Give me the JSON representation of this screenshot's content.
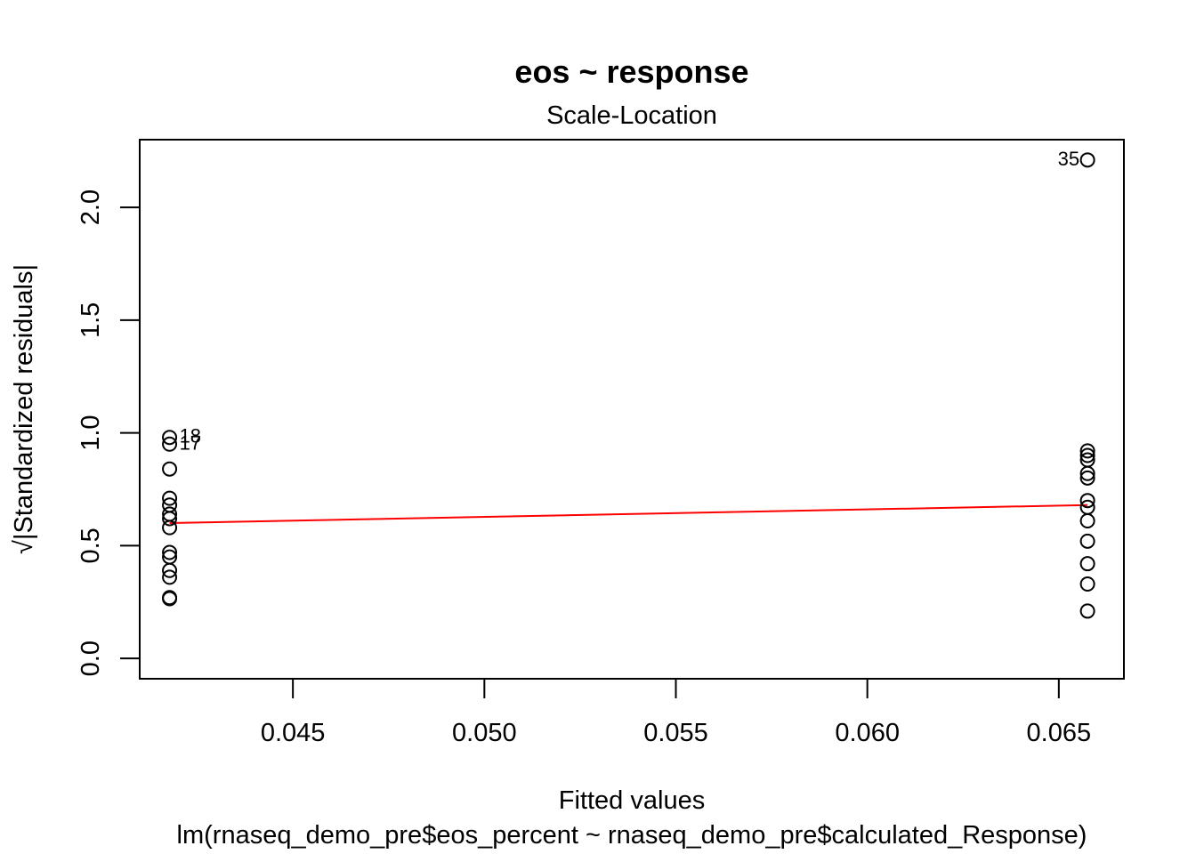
{
  "chart_data": {
    "type": "scatter",
    "title": "eos ~ response",
    "subtitle": "Scale-Location",
    "xlabel": "Fitted values",
    "xsublabel": "lm(rnaseq_demo_pre$eos_percent ~ rnaseq_demo_pre$calculated_Response)",
    "ylabel": "√|Standardized residuals|",
    "xlim": [
      0.041,
      0.0667
    ],
    "ylim": [
      -0.09,
      2.3
    ],
    "x_ticks": [
      0.045,
      0.05,
      0.055,
      0.06,
      0.065
    ],
    "x_tick_labels": [
      "0.045",
      "0.050",
      "0.055",
      "0.060",
      "0.065"
    ],
    "y_ticks": [
      0.0,
      0.5,
      1.0,
      1.5,
      2.0
    ],
    "y_tick_labels": [
      "0.0",
      "0.5",
      "1.0",
      "1.5",
      "2.0"
    ],
    "grid": false,
    "series": [
      {
        "points": [
          {
            "x": 0.04178,
            "y": 0.98
          },
          {
            "x": 0.04178,
            "y": 0.95
          },
          {
            "x": 0.04178,
            "y": 0.84
          },
          {
            "x": 0.04178,
            "y": 0.71
          },
          {
            "x": 0.04178,
            "y": 0.68
          },
          {
            "x": 0.04178,
            "y": 0.64
          },
          {
            "x": 0.04178,
            "y": 0.62
          },
          {
            "x": 0.04178,
            "y": 0.58
          },
          {
            "x": 0.04178,
            "y": 0.47
          },
          {
            "x": 0.04178,
            "y": 0.45
          },
          {
            "x": 0.04178,
            "y": 0.39
          },
          {
            "x": 0.04178,
            "y": 0.36
          },
          {
            "x": 0.04178,
            "y": 0.27
          },
          {
            "x": 0.04178,
            "y": 0.265
          },
          {
            "x": 0.06575,
            "y": 2.21
          },
          {
            "x": 0.06575,
            "y": 0.92
          },
          {
            "x": 0.06575,
            "y": 0.9
          },
          {
            "x": 0.06575,
            "y": 0.88
          },
          {
            "x": 0.06575,
            "y": 0.82
          },
          {
            "x": 0.06575,
            "y": 0.8
          },
          {
            "x": 0.06575,
            "y": 0.7
          },
          {
            "x": 0.06575,
            "y": 0.67
          },
          {
            "x": 0.06575,
            "y": 0.61
          },
          {
            "x": 0.06575,
            "y": 0.52
          },
          {
            "x": 0.06575,
            "y": 0.42
          },
          {
            "x": 0.06575,
            "y": 0.33
          },
          {
            "x": 0.06575,
            "y": 0.21
          }
        ]
      }
    ],
    "point_labels": [
      {
        "text": "18",
        "x": 0.04178,
        "y": 0.98,
        "side": "right"
      },
      {
        "text": "17",
        "x": 0.04178,
        "y": 0.95,
        "side": "right"
      },
      {
        "text": "35",
        "x": 0.06575,
        "y": 2.21,
        "side": "left"
      }
    ],
    "smoother": {
      "color": "#ff0000",
      "points": [
        {
          "x": 0.04178,
          "y": 0.6
        },
        {
          "x": 0.06575,
          "y": 0.68
        }
      ]
    },
    "point_color": "#000000"
  }
}
